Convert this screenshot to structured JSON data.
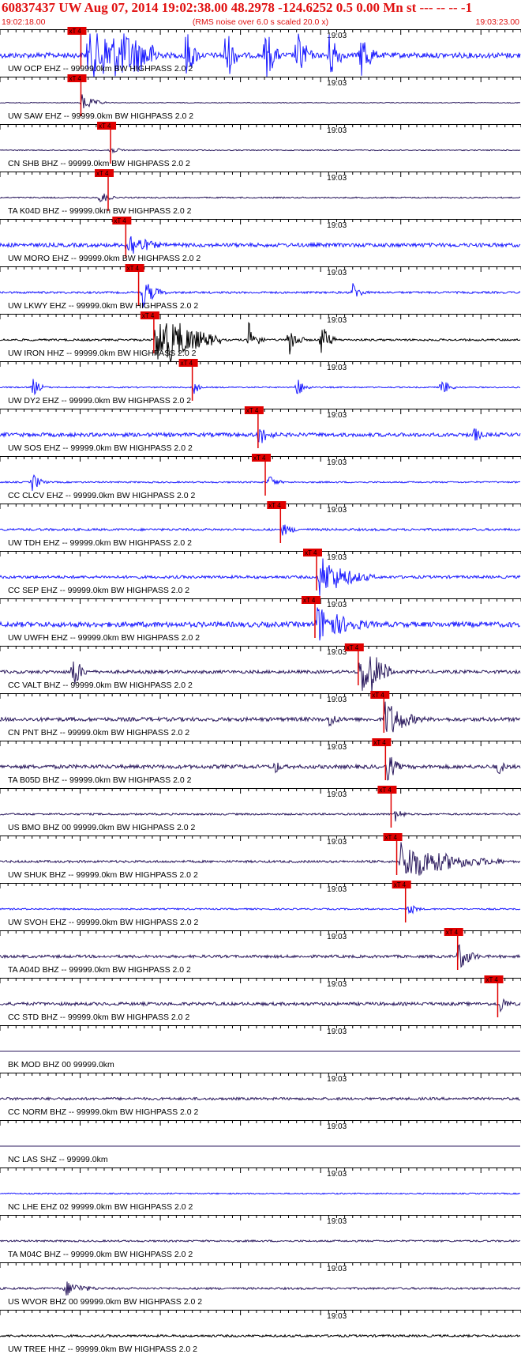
{
  "header": {
    "title": "60837437 UW Aug 07, 2014 19:02:38.00   48.2978 -124.6252  0.5 0.00 Mn st --- -- --  -1",
    "start_time": "19:02:18.00",
    "rms_note": "(RMS noise over 6.0 s scaled 20.0 x)",
    "end_time": "19:03:23.00"
  },
  "colors": {
    "header": "#e01010",
    "pick": "#e00000",
    "grid": "#000000",
    "blue": "#1a1aff",
    "navy": "#2b1a5e",
    "black": "#000000"
  },
  "chart_data": {
    "type": "line",
    "x_start": "19:02:18.00",
    "x_end": "19:03:23.00",
    "center_tick_label": "19:03",
    "pick_label": "xT 4",
    "traces": [
      {
        "label": "UW OCP EHZ -- 99999.0km BW  HIGHPASS  2.0  2",
        "color": "blue",
        "amp": 0.42,
        "pick_s": 9.6,
        "burst_s": 11,
        "burst_amp": 4.5,
        "burst_dur": 9,
        "extra_bursts": [
          23,
          28,
          33,
          37,
          41,
          45
        ]
      },
      {
        "label": "UW SAW EHZ -- 99999.0km BW  HIGHPASS  2.0  2",
        "color": "navy",
        "amp": 0.06,
        "pick_s": 9.6,
        "burst_s": 10.2,
        "burst_amp": 0.55,
        "burst_dur": 3,
        "extra_bursts": []
      },
      {
        "label": "CN SHB BHZ -- 99999.0km BW  HIGHPASS  2.0  2",
        "color": "navy",
        "amp": 0.08,
        "pick_s": 13.3,
        "burst_s": 13.5,
        "burst_amp": 0.25,
        "burst_dur": 3,
        "extra_bursts": []
      },
      {
        "label": "TA K04D BHZ -- 99999.0km BW  HIGHPASS  2.0  2",
        "color": "navy",
        "amp": 0.1,
        "pick_s": 13.0,
        "burst_s": 12.5,
        "burst_amp": 0.45,
        "burst_dur": 2,
        "extra_bursts": []
      },
      {
        "label": "UW MORO EHZ -- 99999.0km BW  HIGHPASS  2.0  2",
        "color": "blue",
        "amp": 0.3,
        "pick_s": 15.2,
        "burst_s": 15.8,
        "burst_amp": 0.9,
        "burst_dur": 5,
        "extra_bursts": []
      },
      {
        "label": "UW LKWY EHZ -- 99999.0km BW  HIGHPASS  2.0  2",
        "color": "blue",
        "amp": 0.16,
        "pick_s": 16.8,
        "burst_s": 17.8,
        "burst_amp": 0.9,
        "burst_dur": 3,
        "extra_bursts": [
          44
        ]
      },
      {
        "label": "UW IRON HHZ -- 99999.0km BW  HIGHPASS  2.0  2",
        "color": "black",
        "amp": 0.16,
        "pick_s": 18.7,
        "burst_s": 19.5,
        "burst_amp": 2.2,
        "burst_dur": 8,
        "extra_bursts": [
          31,
          36,
          40
        ]
      },
      {
        "label": "UW DY2 EHZ -- 99999.0km BW  HIGHPASS  2.0  2",
        "color": "blue",
        "amp": 0.1,
        "pick_s": 23.5,
        "burst_s": 24.2,
        "burst_amp": 0.6,
        "burst_dur": 1,
        "extra_bursts": [
          4,
          37,
          55
        ]
      },
      {
        "label": "UW SOS EHZ -- 99999.0km BW  HIGHPASS  2.0  2",
        "color": "blue",
        "amp": 0.3,
        "pick_s": 31.7,
        "burst_s": 32.2,
        "burst_amp": 0.7,
        "burst_dur": 3,
        "extra_bursts": [
          59
        ]
      },
      {
        "label": "CC CLCV EHZ -- 99999.0km BW  HIGHPASS  2.0  2",
        "color": "blue",
        "amp": 0.12,
        "pick_s": 32.6,
        "burst_s": 33.5,
        "burst_amp": 0.5,
        "burst_dur": 2,
        "extra_bursts": [
          4
        ]
      },
      {
        "label": "UW TDH EHZ -- 99999.0km BW  HIGHPASS  2.0  2",
        "color": "blue",
        "amp": 0.18,
        "pick_s": 34.5,
        "burst_s": 35.2,
        "burst_amp": 0.4,
        "burst_dur": 3,
        "extra_bursts": []
      },
      {
        "label": "CC SEP EHZ -- 99999.0km BW  HIGHPASS  2.0  2",
        "color": "blue",
        "amp": 0.22,
        "pick_s": 39.0,
        "burst_s": 39.8,
        "burst_amp": 1.3,
        "burst_dur": 7,
        "extra_bursts": []
      },
      {
        "label": "UW UWFH EHZ -- 99999.0km BW  HIGHPASS  2.0  2",
        "color": "blue",
        "amp": 0.4,
        "pick_s": 38.8,
        "burst_s": 39.5,
        "burst_amp": 1.2,
        "burst_dur": 8,
        "extra_bursts": []
      },
      {
        "label": "CC VALT BHZ -- 99999.0km BW  HIGHPASS  2.0  2",
        "color": "navy",
        "amp": 0.25,
        "pick_s": 44.2,
        "burst_s": 45.0,
        "burst_amp": 2.6,
        "burst_dur": 4,
        "extra_bursts": [
          9
        ]
      },
      {
        "label": "CN PNT BHZ -- 99999.0km BW  HIGHPASS  2.0  2",
        "color": "navy",
        "amp": 0.3,
        "pick_s": 47.4,
        "burst_s": 48.0,
        "burst_amp": 1.3,
        "burst_dur": 5,
        "extra_bursts": [
          41
        ]
      },
      {
        "label": "TA B05D BHZ -- 99999.0km BW  HIGHPASS  2.0  2",
        "color": "navy",
        "amp": 0.3,
        "pick_s": 47.6,
        "burst_s": 48.3,
        "burst_amp": 1.1,
        "burst_dur": 2,
        "extra_bursts": [
          34,
          62
        ]
      },
      {
        "label": "US BMO BHZ 00 99999.0km BW  HIGHPASS  2.0  2",
        "color": "navy",
        "amp": 0.14,
        "pick_s": 48.3,
        "burst_s": 49.2,
        "burst_amp": 0.5,
        "burst_dur": 2,
        "extra_bursts": []
      },
      {
        "label": "UW SHUK BHZ -- 99999.0km BW  HIGHPASS  2.0  2",
        "color": "navy",
        "amp": 0.18,
        "pick_s": 49.0,
        "burst_s": 50.0,
        "burst_amp": 1.2,
        "burst_dur": 13,
        "extra_bursts": []
      },
      {
        "label": "UW SVOH EHZ -- 99999.0km BW  HIGHPASS  2.0  2",
        "color": "blue",
        "amp": 0.12,
        "pick_s": 50.1,
        "burst_s": 51.0,
        "burst_amp": 0.4,
        "burst_dur": 2,
        "extra_bursts": []
      },
      {
        "label": "TA A04D BHZ -- 99999.0km BW  HIGHPASS  2.0  2",
        "color": "navy",
        "amp": 0.22,
        "pick_s": 56.6,
        "burst_s": 57.2,
        "burst_amp": 0.9,
        "burst_dur": 3,
        "extra_bursts": []
      },
      {
        "label": "CC STD BHZ -- 99999.0km BW  HIGHPASS  2.0  2",
        "color": "navy",
        "amp": 0.25,
        "pick_s": 61.6,
        "burst_s": 62.4,
        "burst_amp": 0.6,
        "burst_dur": 2,
        "extra_bursts": []
      },
      {
        "label": "BK MOD BHZ 00 99999.0km",
        "color": "navy",
        "amp": 0.0,
        "pick_s": null,
        "burst_s": null,
        "burst_amp": 0,
        "burst_dur": 0,
        "extra_bursts": []
      },
      {
        "label": "CC NORM BHZ -- 99999.0km BW  HIGHPASS  2.0  2",
        "color": "navy",
        "amp": 0.2,
        "pick_s": null,
        "burst_s": null,
        "burst_amp": 0,
        "burst_dur": 0,
        "extra_bursts": []
      },
      {
        "label": "NC LAS SHZ -- 99999.0km",
        "color": "navy",
        "amp": 0.0,
        "pick_s": null,
        "burst_s": null,
        "burst_amp": 0,
        "burst_dur": 0,
        "extra_bursts": []
      },
      {
        "label": "NC LHE EHZ 02 99999.0km BW  HIGHPASS  2.0  2",
        "color": "blue",
        "amp": 0.1,
        "pick_s": null,
        "burst_s": null,
        "burst_amp": 0,
        "burst_dur": 0,
        "extra_bursts": []
      },
      {
        "label": "TA M04C BHZ -- 99999.0km BW  HIGHPASS  2.0  2",
        "color": "navy",
        "amp": 0.14,
        "pick_s": null,
        "burst_s": null,
        "burst_amp": 0,
        "burst_dur": 0,
        "extra_bursts": []
      },
      {
        "label": "US WVOR BHZ 00 99999.0km BW  HIGHPASS  2.0  2",
        "color": "navy",
        "amp": 0.16,
        "pick_s": null,
        "burst_s": 8.0,
        "burst_amp": 0.5,
        "burst_dur": 5,
        "extra_bursts": []
      },
      {
        "label": "UW TREE HHZ -- 99999.0km BW  HIGHPASS  2.0  2",
        "color": "black",
        "amp": 0.18,
        "pick_s": null,
        "burst_s": null,
        "burst_amp": 0,
        "burst_dur": 0,
        "extra_bursts": []
      }
    ]
  }
}
